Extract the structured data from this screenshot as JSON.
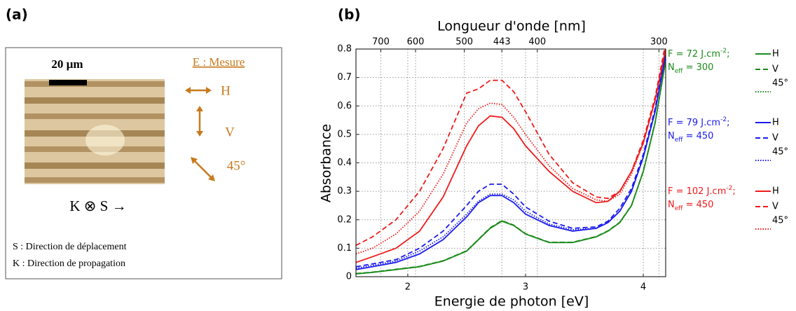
{
  "panel_a": {
    "label": "(a)",
    "scale_bar": "20 µm",
    "field_title": "E : Mesure",
    "polarizations": [
      "H",
      "V",
      "45°"
    ],
    "symbols": "K ⊗ S →",
    "notes": [
      "S : Direction de déplacement",
      "K : Direction de propagation"
    ]
  },
  "chart_data": {
    "type": "line",
    "panel_label": "(b)",
    "x_label": "Energie de photon [eV]",
    "y_label": "Absorbance",
    "x2_label": "Longueur d'onde [nm]",
    "xlim": [
      1.56,
      4.19
    ],
    "ylim": [
      0,
      0.8
    ],
    "xticks": [
      2,
      3,
      4
    ],
    "yticks": [
      0,
      0.1,
      0.2,
      0.3,
      0.4,
      0.5,
      0.6,
      0.7,
      0.8
    ],
    "x2ticks": [
      {
        "value": 1.771,
        "label": "700"
      },
      {
        "value": 2.066,
        "label": "600"
      },
      {
        "value": 2.48,
        "label": "500"
      },
      {
        "value": 2.799,
        "label": "443"
      },
      {
        "value": 3.1,
        "label": "400"
      },
      {
        "value": 4.133,
        "label": "300"
      }
    ],
    "grid": true,
    "annotations": [
      {
        "color": "#1a8a1a",
        "line1": [
          "F = 72 J.cm",
          "-2",
          ";"
        ],
        "line2": [
          "N",
          "eff",
          " = 300"
        ]
      },
      {
        "color": "#1a1aee",
        "line1": [
          "F = 79 J.cm",
          "-2",
          ";"
        ],
        "line2": [
          "N",
          "eff",
          " = 450"
        ]
      },
      {
        "color": "#ee1a1a",
        "line1": [
          "F = 102 J.cm",
          "-2",
          ";"
        ],
        "line2": [
          "N",
          "eff",
          " = 450"
        ]
      }
    ],
    "x": [
      1.56,
      1.7,
      1.9,
      2.1,
      2.3,
      2.5,
      2.6,
      2.7,
      2.8,
      2.9,
      3.0,
      3.2,
      3.4,
      3.6,
      3.7,
      3.8,
      3.9,
      4.0,
      4.1,
      4.19
    ],
    "series": [
      {
        "name": "H",
        "color": "#1a8a1a",
        "dash": "solid",
        "values": [
          0.01,
          0.015,
          0.025,
          0.035,
          0.055,
          0.09,
          0.13,
          0.17,
          0.195,
          0.18,
          0.15,
          0.12,
          0.12,
          0.14,
          0.16,
          0.19,
          0.25,
          0.37,
          0.54,
          0.76
        ]
      },
      {
        "name": "V",
        "color": "#1a8a1a",
        "dash": "dashed",
        "values": [
          0.011,
          0.016,
          0.026,
          0.036,
          0.056,
          0.091,
          0.131,
          0.172,
          0.197,
          0.181,
          0.151,
          0.121,
          0.121,
          0.141,
          0.161,
          0.191,
          0.251,
          0.371,
          0.541,
          0.761
        ]
      },
      {
        "name": "45°",
        "color": "#1a8a1a",
        "dash": "dotted",
        "values": [
          0.01,
          0.015,
          0.025,
          0.035,
          0.055,
          0.09,
          0.13,
          0.171,
          0.196,
          0.18,
          0.15,
          0.12,
          0.12,
          0.14,
          0.16,
          0.19,
          0.25,
          0.37,
          0.54,
          0.76
        ]
      },
      {
        "name": "H",
        "color": "#1a1aee",
        "dash": "solid",
        "values": [
          0.025,
          0.035,
          0.05,
          0.08,
          0.13,
          0.21,
          0.26,
          0.285,
          0.285,
          0.26,
          0.22,
          0.18,
          0.16,
          0.17,
          0.19,
          0.23,
          0.3,
          0.42,
          0.58,
          0.78
        ]
      },
      {
        "name": "V",
        "color": "#1a1aee",
        "dash": "dashed",
        "values": [
          0.035,
          0.045,
          0.06,
          0.1,
          0.16,
          0.25,
          0.3,
          0.325,
          0.325,
          0.29,
          0.245,
          0.195,
          0.17,
          0.175,
          0.195,
          0.24,
          0.31,
          0.43,
          0.59,
          0.79
        ]
      },
      {
        "name": "45°",
        "color": "#1a1aee",
        "dash": "dotted",
        "values": [
          0.03,
          0.04,
          0.055,
          0.09,
          0.14,
          0.22,
          0.265,
          0.29,
          0.29,
          0.27,
          0.23,
          0.185,
          0.165,
          0.17,
          0.19,
          0.23,
          0.3,
          0.42,
          0.58,
          0.78
        ]
      },
      {
        "name": "H",
        "color": "#ee1a1a",
        "dash": "solid",
        "values": [
          0.05,
          0.07,
          0.1,
          0.16,
          0.28,
          0.46,
          0.53,
          0.565,
          0.56,
          0.52,
          0.46,
          0.37,
          0.3,
          0.26,
          0.265,
          0.3,
          0.37,
          0.47,
          0.62,
          0.8
        ]
      },
      {
        "name": "V",
        "color": "#ee1a1a",
        "dash": "dashed",
        "values": [
          0.11,
          0.14,
          0.2,
          0.3,
          0.45,
          0.645,
          0.66,
          0.69,
          0.69,
          0.65,
          0.58,
          0.43,
          0.33,
          0.28,
          0.275,
          0.3,
          0.37,
          0.48,
          0.63,
          0.82
        ]
      },
      {
        "name": "45°",
        "color": "#ee1a1a",
        "dash": "dotted",
        "values": [
          0.08,
          0.1,
          0.15,
          0.23,
          0.36,
          0.54,
          0.59,
          0.61,
          0.605,
          0.56,
          0.5,
          0.39,
          0.31,
          0.27,
          0.265,
          0.29,
          0.36,
          0.47,
          0.62,
          0.8
        ]
      }
    ]
  }
}
